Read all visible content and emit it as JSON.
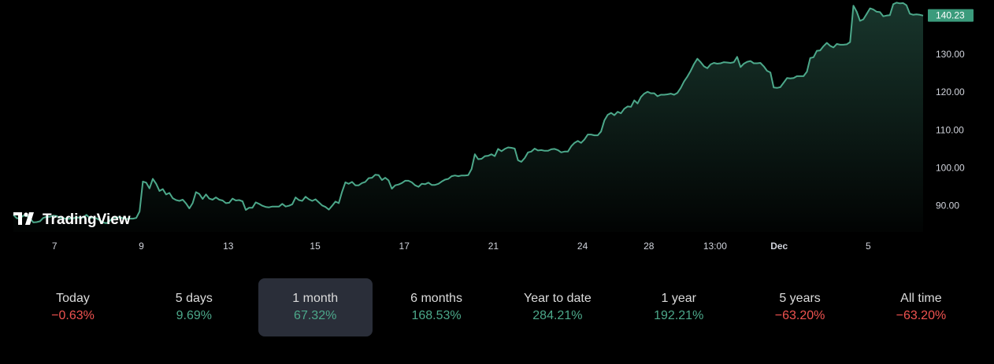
{
  "colors": {
    "line": "#4ca88a",
    "price_tag_bg": "#3b9b7c",
    "positive": "#4ca88a",
    "negative": "#f05350",
    "active_tab_bg": "#2a2e39"
  },
  "logo": {
    "text": "TradingView",
    "icon": "tradingview-logo-icon"
  },
  "chart_data": {
    "type": "area",
    "x_ticks": [
      "7",
      "9",
      "13",
      "15",
      "17",
      "21",
      "24",
      "28",
      "13:00",
      "Dec",
      "5"
    ],
    "x_ticks_bold": [
      "Dec"
    ],
    "y_ticks": [
      "90.00",
      "100.00",
      "110.00",
      "120.00",
      "130.00"
    ],
    "ylim": [
      83.1,
      144.3
    ],
    "last_price_label": "140.23",
    "last_price": 140.23,
    "y": [
      87.6,
      86.7,
      86.7,
      87.4,
      87.3,
      86.7,
      85.6,
      85.7,
      85.9,
      86.8,
      87.1,
      87.1,
      87.4,
      87.3,
      86.9,
      86.8,
      86.5,
      86.6,
      86.7,
      86.9,
      86.9,
      86.9,
      87.6,
      86.8,
      86.9,
      86.7,
      86.2,
      85.6,
      85.4,
      86.0,
      86.9,
      86.9,
      87.0,
      86.7,
      86.5,
      86.6,
      86.6,
      86.8,
      88.5,
      96.4,
      96.1,
      94.6,
      97.1,
      95.8,
      93.9,
      94.4,
      93.0,
      93.4,
      92.0,
      91.5,
      91.3,
      91.6,
      90.6,
      89.3,
      90.7,
      93.6,
      93.1,
      91.8,
      93.0,
      91.9,
      91.6,
      92.2,
      91.6,
      91.4,
      90.7,
      90.8,
      91.9,
      91.4,
      91.5,
      91.2,
      88.9,
      89.5,
      89.5,
      90.9,
      90.5,
      90.0,
      89.7,
      89.6,
      89.8,
      89.8,
      89.8,
      90.5,
      89.8,
      90.0,
      90.4,
      92.2,
      91.5,
      91.3,
      92.4,
      91.7,
      91.3,
      91.7,
      90.9,
      90.1,
      89.7,
      89.0,
      90.0,
      91.1,
      90.7,
      93.7,
      96.2,
      95.8,
      96.3,
      95.4,
      95.4,
      96.0,
      96.3,
      97.3,
      97.4,
      98.2,
      98.1,
      96.8,
      97.4,
      96.7,
      94.5,
      95.4,
      95.6,
      96.0,
      96.6,
      96.6,
      96.2,
      95.4,
      95.0,
      95.8,
      95.7,
      96.1,
      95.5,
      95.5,
      95.8,
      96.4,
      96.9,
      97.1,
      97.8,
      98.0,
      97.8,
      98.0,
      98.0,
      98.1,
      99.7,
      103.6,
      102.3,
      102.4,
      103.1,
      103.2,
      103.6,
      103.1,
      105.0,
      104.4,
      105.0,
      105.4,
      105.3,
      105.1,
      102.0,
      101.6,
      102.6,
      104.1,
      104.3,
      105.1,
      104.6,
      104.7,
      104.5,
      104.5,
      104.9,
      105.0,
      104.7,
      104.1,
      104.3,
      104.3,
      105.7,
      106.6,
      107.1,
      106.6,
      107.5,
      108.8,
      108.8,
      108.6,
      108.6,
      109.6,
      112.5,
      114.0,
      114.5,
      113.9,
      114.8,
      114.4,
      115.6,
      116.2,
      116.1,
      117.8,
      117.0,
      118.7,
      119.6,
      120.1,
      119.7,
      119.7,
      118.9,
      119.3,
      119.3,
      119.4,
      119.6,
      119.3,
      119.8,
      121.1,
      122.8,
      124.1,
      125.6,
      127.4,
      128.8,
      127.9,
      126.8,
      126.3,
      127.3,
      127.7,
      127.5,
      127.6,
      127.9,
      127.8,
      127.7,
      127.9,
      129.3,
      126.6,
      127.5,
      128.0,
      128.2,
      127.6,
      127.6,
      127.7,
      126.8,
      125.6,
      125.2,
      121.2,
      121.1,
      121.3,
      122.5,
      123.7,
      123.6,
      123.7,
      124.2,
      124.2,
      124.2,
      125.4,
      129.0,
      129.2,
      130.9,
      131.0,
      132.1,
      133.0,
      132.2,
      131.8,
      132.7,
      132.5,
      132.5,
      132.6,
      133.2,
      142.8,
      141.2,
      138.8,
      139.2,
      140.6,
      142.1,
      141.8,
      141.2,
      141.1,
      140.0,
      140.2,
      140.3,
      143.2,
      143.6,
      143.4,
      143.5,
      142.9,
      140.7,
      140.4,
      140.5,
      140.4,
      140.2
    ]
  },
  "periods": [
    {
      "label": "Today",
      "value": "−0.63%",
      "trend": "neg",
      "active": false
    },
    {
      "label": "5 days",
      "value": "9.69%",
      "trend": "pos",
      "active": false
    },
    {
      "label": "1 month",
      "value": "67.32%",
      "trend": "pos",
      "active": true
    },
    {
      "label": "6 months",
      "value": "168.53%",
      "trend": "pos",
      "active": false
    },
    {
      "label": "Year to date",
      "value": "284.21%",
      "trend": "pos",
      "active": false
    },
    {
      "label": "1 year",
      "value": "192.21%",
      "trend": "pos",
      "active": false
    },
    {
      "label": "5 years",
      "value": "−63.20%",
      "trend": "neg",
      "active": false
    },
    {
      "label": "All time",
      "value": "−63.20%",
      "trend": "neg",
      "active": false
    }
  ]
}
